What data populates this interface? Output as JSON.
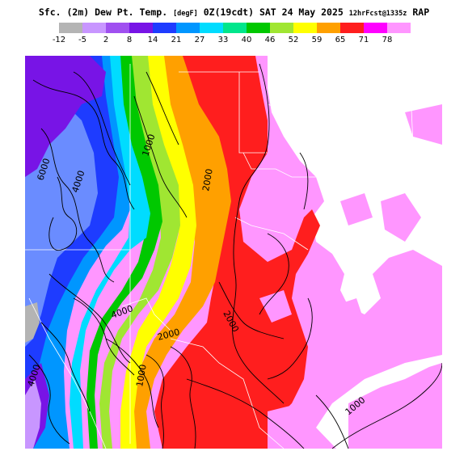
{
  "header": {
    "title_main": "Sfc. (2m) Dew Pt. Temp.",
    "title_units": "[degF]",
    "title_valid": "0Z(19cdt) SAT 24 May 2025",
    "title_fcst": "12hrFcst@1335z",
    "title_model": "RAP"
  },
  "legend": {
    "colors": [
      "#b4b4b4",
      "#c896ff",
      "#a050f0",
      "#7814e6",
      "#1e3cff",
      "#0096ff",
      "#00dcff",
      "#00e68c",
      "#00c800",
      "#a0e632",
      "#ffff00",
      "#ffa000",
      "#ff1e1e",
      "#ff00ff",
      "#ff96ff"
    ],
    "ticks": [
      "-12",
      "-5",
      "2",
      "8",
      "14",
      "21",
      "27",
      "33",
      "40",
      "46",
      "52",
      "59",
      "65",
      "71",
      "78"
    ]
  },
  "map": {
    "contour_labels": [
      "6000",
      "4000",
      "1000",
      "2000",
      "2000",
      "4000",
      "2000",
      "1000",
      "4000",
      "1000"
    ]
  }
}
